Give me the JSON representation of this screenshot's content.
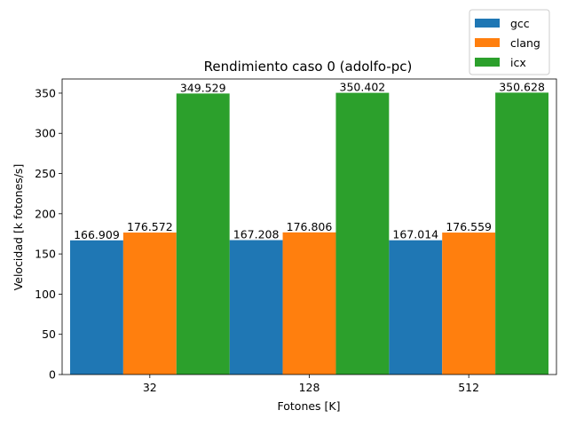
{
  "chart_data": {
    "type": "bar",
    "title": "Rendimiento caso 0 (adolfo-pc)",
    "xlabel": "Fotones [K]",
    "ylabel": "Velocidad [k fotones/s]",
    "categories": [
      "32",
      "128",
      "512"
    ],
    "series": [
      {
        "name": "gcc",
        "color": "#1f77b4",
        "values": [
          166.909,
          167.208,
          167.014
        ],
        "labels": [
          "166.909",
          "167.208",
          "167.014"
        ]
      },
      {
        "name": "clang",
        "color": "#ff7f0e",
        "values": [
          176.572,
          176.806,
          176.559
        ],
        "labels": [
          "176.572",
          "176.806",
          "176.559"
        ]
      },
      {
        "name": "icx",
        "color": "#2ca02c",
        "values": [
          349.529,
          350.402,
          350.628
        ],
        "labels": [
          "349.529",
          "350.402",
          "350.628"
        ]
      }
    ],
    "ylim": [
      0,
      367.6
    ],
    "yticks": [
      0,
      50,
      100,
      150,
      200,
      250,
      300,
      350
    ],
    "grid": false,
    "legend_position": "top-right, above plot"
  }
}
